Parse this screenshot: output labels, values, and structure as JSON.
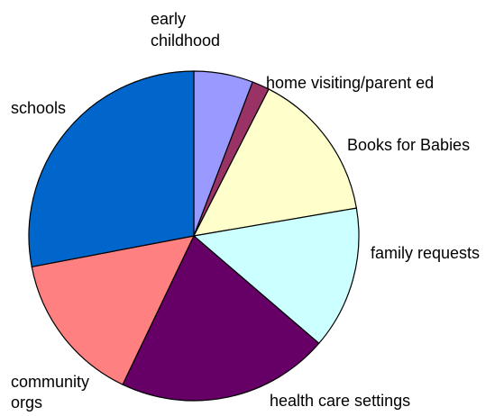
{
  "chart_data": {
    "type": "pie",
    "title": "",
    "labels": [
      "early childhood",
      "home visiting/parent ed",
      "Books for Babies",
      "family requests",
      "health care settings",
      "community orgs",
      "schools"
    ],
    "values": [
      5.8,
      1.7,
      14.8,
      14.0,
      20.8,
      14.9,
      28.0
    ],
    "colors": [
      "#9999ff",
      "#993366",
      "#ffffcc",
      "#ccffff",
      "#660066",
      "#ff8080",
      "#0066cc"
    ],
    "start_angle_deg": 0,
    "direction": "clockwise",
    "legend": "none",
    "data_labels": "category names outside slices"
  }
}
